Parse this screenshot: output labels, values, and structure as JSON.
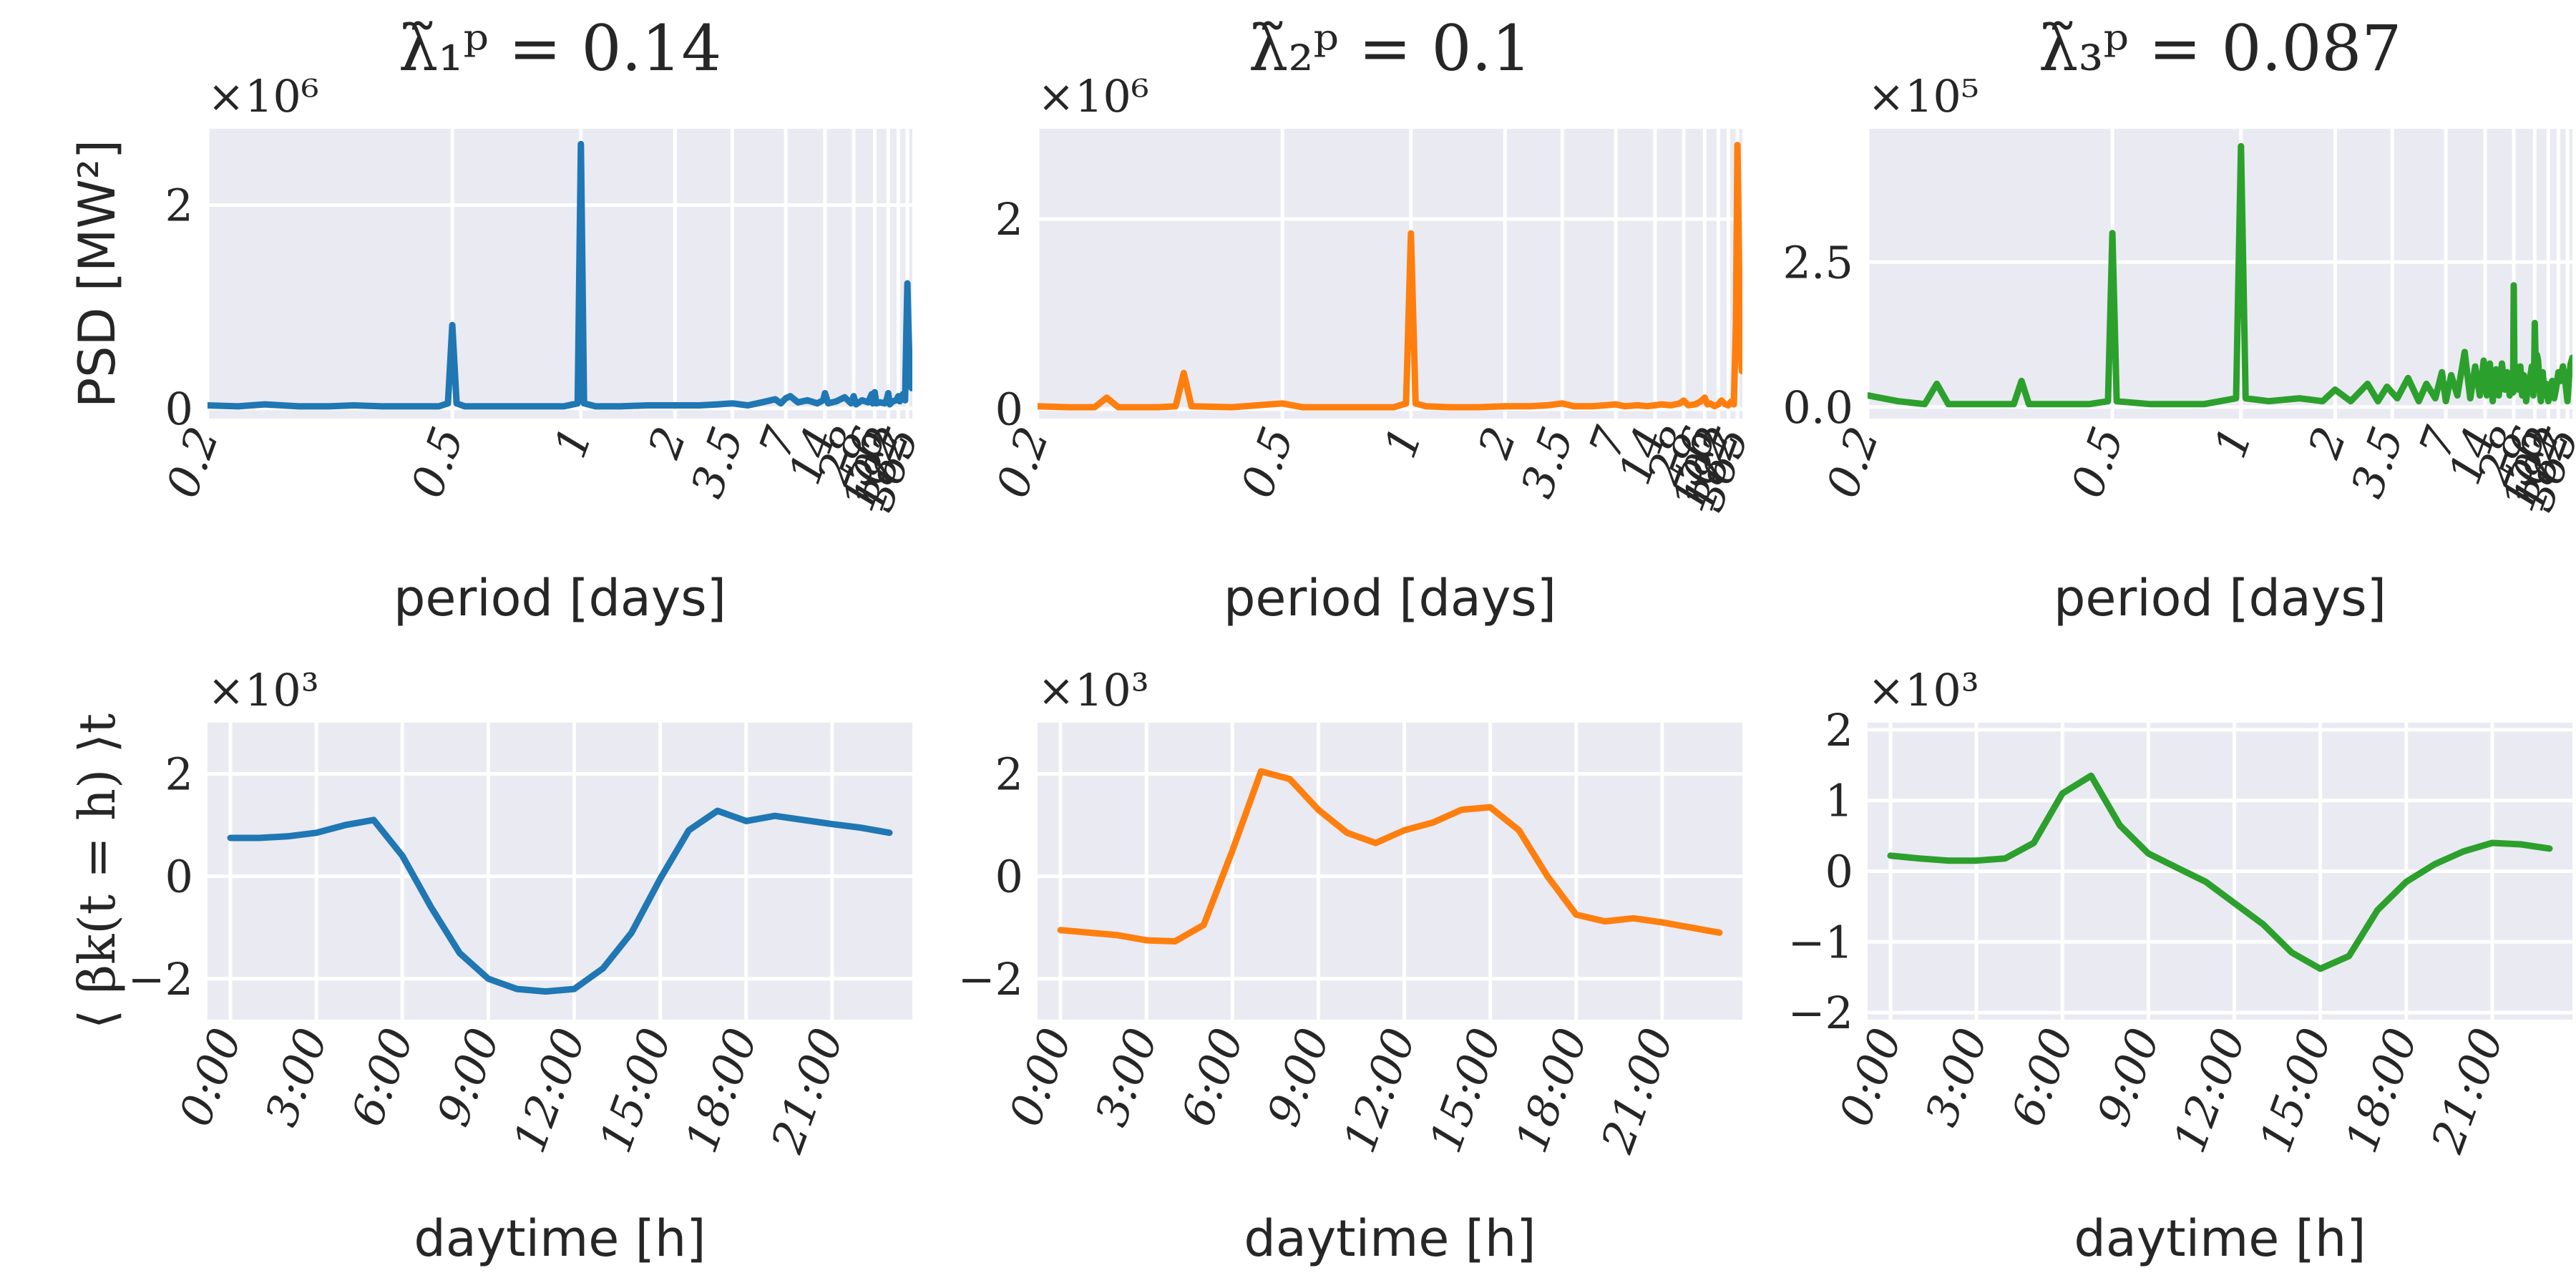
{
  "figure": {
    "colors": [
      "#1f77b4",
      "#ff7f0e",
      "#2ca02c"
    ],
    "background": "#eaeaf2",
    "grid_color": "#ffffff"
  },
  "chart_data": [
    {
      "type": "line",
      "id": "psd1",
      "title": "λ̃₁ᵖ = 0.14",
      "multiplier": "×10⁶",
      "ylabel": "PSD [MW²]",
      "xlabel": "period [days]",
      "xscale": "log-frequency",
      "xlim": [
        0.2,
        600
      ],
      "ylim": [
        -0.1,
        2.75
      ],
      "yticks": [
        0,
        2
      ],
      "yticklabels": [
        "0",
        "2"
      ],
      "xticks": [
        0.2,
        0.5,
        1,
        2,
        3.5,
        7,
        14,
        28,
        56,
        102,
        182,
        365
      ],
      "xticklabels": [
        "0.2",
        "0.5",
        "1",
        "2",
        "3.5",
        "7",
        "14",
        "28",
        "56",
        "102",
        "182",
        "365"
      ],
      "color": "#1f77b4",
      "x": [
        0.2,
        0.22,
        0.24,
        0.27,
        0.3,
        0.33,
        0.37,
        0.42,
        0.47,
        0.49,
        0.5,
        0.51,
        0.53,
        0.6,
        0.7,
        0.8,
        0.9,
        0.98,
        1,
        1.02,
        1.1,
        1.3,
        1.6,
        2,
        2.5,
        3,
        3.5,
        4.2,
        5,
        6,
        6.5,
        7,
        7.5,
        8.5,
        10,
        12,
        13.5,
        14,
        15,
        18,
        22,
        26,
        28,
        30,
        36,
        44,
        50,
        52,
        54,
        56,
        60,
        70,
        85,
        95,
        102,
        110,
        130,
        160,
        182,
        200,
        250,
        300,
        330,
        365,
        400,
        460,
        560
      ],
      "values": [
        0.03,
        0.02,
        0.04,
        0.02,
        0.02,
        0.03,
        0.02,
        0.02,
        0.02,
        0.05,
        0.82,
        0.05,
        0.02,
        0.02,
        0.02,
        0.02,
        0.02,
        0.05,
        2.6,
        0.05,
        0.02,
        0.02,
        0.03,
        0.03,
        0.03,
        0.04,
        0.05,
        0.03,
        0.06,
        0.09,
        0.05,
        0.1,
        0.12,
        0.06,
        0.08,
        0.05,
        0.08,
        0.15,
        0.05,
        0.07,
        0.11,
        0.05,
        0.12,
        0.04,
        0.08,
        0.06,
        0.14,
        0.05,
        0.14,
        0.16,
        0.05,
        0.06,
        0.05,
        0.09,
        0.15,
        0.04,
        0.07,
        0.08,
        0.12,
        0.07,
        0.14,
        0.08,
        0.7,
        1.23,
        0.8,
        0.35,
        0.2
      ]
    },
    {
      "type": "line",
      "id": "psd2",
      "title": "λ̃₂ᵖ = 0.1",
      "multiplier": "×10⁶",
      "ylabel": "",
      "xlabel": "period [days]",
      "xscale": "log-frequency",
      "xlim": [
        0.2,
        600
      ],
      "ylim": [
        -0.1,
        2.95
      ],
      "yticks": [
        0,
        2
      ],
      "yticklabels": [
        "0",
        "2"
      ],
      "xticks": [
        0.2,
        0.5,
        1,
        2,
        3.5,
        7,
        14,
        28,
        56,
        102,
        182,
        365
      ],
      "xticklabels": [
        "0.2",
        "0.5",
        "1",
        "2",
        "3.5",
        "7",
        "14",
        "28",
        "56",
        "102",
        "182",
        "365"
      ],
      "color": "#ff7f0e",
      "x": [
        0.2,
        0.22,
        0.24,
        0.25,
        0.26,
        0.3,
        0.32,
        0.33,
        0.34,
        0.4,
        0.5,
        0.55,
        0.7,
        0.9,
        0.97,
        1,
        1.03,
        1.1,
        1.3,
        1.6,
        2,
        2.5,
        3,
        3.5,
        4,
        5,
        6,
        7,
        8,
        10,
        12,
        14,
        16,
        20,
        25,
        28,
        32,
        40,
        48,
        56,
        62,
        70,
        85,
        102,
        120,
        150,
        182,
        220,
        270,
        320,
        365,
        420,
        480,
        570
      ],
      "values": [
        0.03,
        0.02,
        0.02,
        0.12,
        0.02,
        0.02,
        0.03,
        0.38,
        0.03,
        0.02,
        0.06,
        0.02,
        0.02,
        0.02,
        0.06,
        1.85,
        0.06,
        0.03,
        0.02,
        0.02,
        0.03,
        0.03,
        0.04,
        0.06,
        0.03,
        0.03,
        0.04,
        0.05,
        0.03,
        0.04,
        0.03,
        0.04,
        0.05,
        0.04,
        0.06,
        0.09,
        0.04,
        0.05,
        0.08,
        0.12,
        0.05,
        0.06,
        0.03,
        0.05,
        0.09,
        0.05,
        0.04,
        0.08,
        0.05,
        0.9,
        2.78,
        1.6,
        0.75,
        0.4
      ]
    },
    {
      "type": "line",
      "id": "psd3",
      "title": "λ̃₃ᵖ = 0.087",
      "multiplier": "×10⁵",
      "ylabel": "",
      "xlabel": "period [days]",
      "xscale": "log-frequency",
      "xlim": [
        0.2,
        600
      ],
      "ylim": [
        -0.2,
        4.8
      ],
      "yticks": [
        0,
        2.5
      ],
      "yticklabels": [
        "0.0",
        "2.5"
      ],
      "xticks": [
        0.2,
        0.5,
        1,
        2,
        3.5,
        7,
        14,
        28,
        56,
        102,
        182,
        365
      ],
      "xticklabels": [
        "0.2",
        "0.5",
        "1",
        "2",
        "3.5",
        "7",
        "14",
        "28",
        "56",
        "102",
        "182",
        "365"
      ],
      "color": "#2ca02c",
      "x": [
        0.2,
        0.22,
        0.24,
        0.25,
        0.26,
        0.3,
        0.33,
        0.34,
        0.35,
        0.45,
        0.49,
        0.5,
        0.51,
        0.6,
        0.8,
        0.97,
        1,
        1.03,
        1.2,
        1.5,
        1.8,
        2,
        2.3,
        2.7,
        3,
        3.3,
        3.7,
        4.2,
        4.8,
        5.3,
        6,
        6.6,
        7,
        7.6,
        8.4,
        9.5,
        10.5,
        11.5,
        12.6,
        13.6,
        14.5,
        15.5,
        16.5,
        17.8,
        19,
        20.5,
        22,
        23.5,
        25,
        26.5,
        27.5,
        28,
        28.6,
        30,
        32,
        34,
        36,
        38,
        41,
        44,
        47,
        50,
        53,
        55,
        56,
        57,
        59,
        61,
        64,
        68,
        72,
        78,
        85,
        92,
        102,
        112,
        125,
        140,
        160,
        182,
        210,
        250,
        300,
        365,
        420,
        500,
        600
      ],
      "values": [
        0.2,
        0.1,
        0.05,
        0.4,
        0.05,
        0.05,
        0.05,
        0.45,
        0.05,
        0.05,
        0.1,
        3.0,
        0.1,
        0.05,
        0.05,
        0.15,
        4.5,
        0.15,
        0.1,
        0.15,
        0.1,
        0.3,
        0.1,
        0.4,
        0.1,
        0.35,
        0.15,
        0.5,
        0.1,
        0.4,
        0.15,
        0.6,
        0.1,
        0.55,
        0.2,
        0.95,
        0.15,
        0.7,
        0.2,
        0.8,
        0.2,
        0.75,
        0.1,
        0.65,
        0.2,
        0.75,
        0.3,
        0.6,
        0.2,
        0.5,
        0.25,
        2.1,
        0.3,
        0.7,
        0.3,
        0.7,
        0.2,
        0.55,
        0.1,
        0.4,
        0.5,
        0.7,
        0.2,
        0.8,
        1.45,
        1.1,
        0.5,
        0.9,
        0.8,
        0.3,
        0.1,
        0.6,
        0.2,
        0.4,
        0.1,
        0.3,
        0.45,
        0.15,
        0.35,
        0.6,
        0.45,
        0.7,
        0.45,
        0.1,
        0.5,
        0.75,
        0.85
      ]
    },
    {
      "type": "line",
      "id": "daily1",
      "title": "",
      "multiplier": "×10³",
      "ylabel": "⟨ βk(t = h) ⟩t",
      "xlabel": "daytime [h]",
      "xlim": [
        -0.8,
        23.8
      ],
      "ylim": [
        -2.8,
        3.0
      ],
      "yticks": [
        -2,
        0,
        2
      ],
      "yticklabels": [
        "−2",
        "0",
        "2"
      ],
      "xticks": [
        0,
        3,
        6,
        9,
        12,
        15,
        18,
        21
      ],
      "xticklabels": [
        "0:00",
        "3:00",
        "6:00",
        "9:00",
        "12:00",
        "15:00",
        "18:00",
        "21:00"
      ],
      "color": "#1f77b4",
      "x": [
        0,
        1,
        2,
        3,
        4,
        5,
        6,
        7,
        8,
        9,
        10,
        11,
        12,
        13,
        14,
        15,
        16,
        17,
        18,
        19,
        20,
        21,
        22,
        23
      ],
      "values": [
        0.75,
        0.75,
        0.78,
        0.85,
        1.0,
        1.1,
        0.4,
        -0.6,
        -1.5,
        -2.0,
        -2.2,
        -2.25,
        -2.2,
        -1.8,
        -1.1,
        -0.05,
        0.9,
        1.28,
        1.08,
        1.18,
        1.1,
        1.02,
        0.95,
        0.85
      ]
    },
    {
      "type": "line",
      "id": "daily2",
      "title": "",
      "multiplier": "×10³",
      "ylabel": "",
      "xlabel": "daytime [h]",
      "xlim": [
        -0.8,
        23.8
      ],
      "ylim": [
        -2.8,
        3.0
      ],
      "yticks": [
        -2,
        0,
        2
      ],
      "yticklabels": [
        "−2",
        "0",
        "2"
      ],
      "xticks": [
        0,
        3,
        6,
        9,
        12,
        15,
        18,
        21
      ],
      "xticklabels": [
        "0:00",
        "3:00",
        "6:00",
        "9:00",
        "12:00",
        "15:00",
        "18:00",
        "21:00"
      ],
      "color": "#ff7f0e",
      "x": [
        0,
        1,
        2,
        3,
        4,
        5,
        6,
        7,
        8,
        9,
        10,
        11,
        12,
        13,
        14,
        15,
        16,
        17,
        18,
        19,
        20,
        21,
        22,
        23
      ],
      "values": [
        -1.05,
        -1.1,
        -1.15,
        -1.25,
        -1.27,
        -0.95,
        0.5,
        2.05,
        1.9,
        1.3,
        0.85,
        0.65,
        0.9,
        1.05,
        1.3,
        1.35,
        0.9,
        0.0,
        -0.75,
        -0.88,
        -0.82,
        -0.9,
        -1.0,
        -1.1
      ]
    },
    {
      "type": "line",
      "id": "daily3",
      "title": "",
      "multiplier": "×10³",
      "ylabel": "",
      "xlabel": "daytime [h]",
      "xlim": [
        -0.8,
        23.8
      ],
      "ylim": [
        -2.1,
        2.1
      ],
      "yticks": [
        -2,
        -1,
        0,
        1,
        2
      ],
      "yticklabels": [
        "−2",
        "−1",
        "0",
        "1",
        "2"
      ],
      "xticks": [
        0,
        3,
        6,
        9,
        12,
        15,
        18,
        21
      ],
      "xticklabels": [
        "0:00",
        "3:00",
        "6:00",
        "9:00",
        "12:00",
        "15:00",
        "18:00",
        "21:00"
      ],
      "color": "#2ca02c",
      "x": [
        0,
        1,
        2,
        3,
        4,
        5,
        6,
        7,
        8,
        9,
        10,
        11,
        12,
        13,
        14,
        15,
        16,
        17,
        18,
        19,
        20,
        21,
        22,
        23
      ],
      "values": [
        0.22,
        0.18,
        0.15,
        0.15,
        0.18,
        0.4,
        1.1,
        1.35,
        0.65,
        0.25,
        0.05,
        -0.15,
        -0.45,
        -0.75,
        -1.15,
        -1.38,
        -1.2,
        -0.55,
        -0.15,
        0.1,
        0.28,
        0.4,
        0.38,
        0.32
      ]
    }
  ]
}
